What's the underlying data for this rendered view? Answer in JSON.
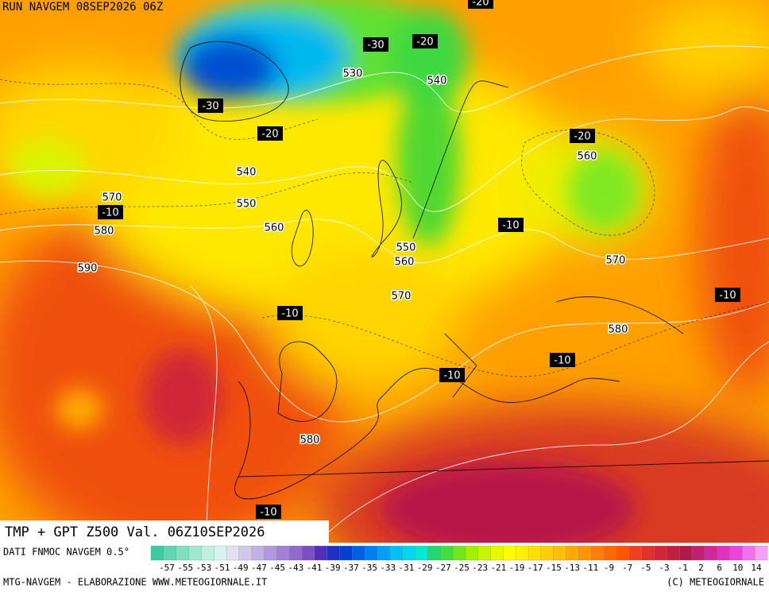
{
  "header": {
    "run": "RUN NAVGEM 08SEP2026 06Z"
  },
  "title": "TMP + GPT Z500 Val. 06Z10SEP2026",
  "map": {
    "temperature_labels": [
      "-20",
      "-30",
      "-20",
      "-30",
      "-20",
      "-10",
      "-20",
      "-10",
      "-10",
      "-10",
      "-10",
      "-10",
      "-10"
    ],
    "height_labels": [
      "530",
      "540",
      "540",
      "570",
      "550",
      "580",
      "560",
      "560",
      "590",
      "550",
      "560",
      "570",
      "570",
      "580",
      "580"
    ]
  },
  "scale": {
    "source": "DATI FNMOC NAVGEM 0.5°",
    "labels": [
      "-57",
      "-55",
      "-53",
      "-51",
      "-49",
      "-47",
      "-45",
      "-43",
      "-41",
      "-39",
      "-37",
      "-35",
      "-33",
      "-31",
      "-29",
      "-27",
      "-25",
      "-23",
      "-21",
      "-19",
      "-17",
      "-15",
      "-13",
      "-11",
      "-9",
      "-7",
      "-5",
      "-3",
      "-1",
      "2",
      "6",
      "10",
      "14"
    ],
    "colors": [
      "#3fc9a0",
      "#5fd6b0",
      "#7fe0c0",
      "#9fe8d0",
      "#bff0e0",
      "#d8f2f0",
      "#e0e0f0",
      "#d0c8ec",
      "#c0b0e6",
      "#b098de",
      "#a080d6",
      "#9068ce",
      "#7a50c4",
      "#5030b8",
      "#2030c0",
      "#0040d0",
      "#0060e0",
      "#0080ee",
      "#00a0f6",
      "#00c0f8",
      "#00d8f0",
      "#00e8d8",
      "#20d870",
      "#40e040",
      "#70e820",
      "#a0f000",
      "#c8f400",
      "#e8f800",
      "#ffff00",
      "#fff000",
      "#ffe000",
      "#ffd000",
      "#ffbf00",
      "#ffaa00",
      "#ff9500",
      "#ff8000",
      "#ff6a00",
      "#ff5500",
      "#f04020",
      "#e03030",
      "#d02838",
      "#c02040",
      "#b01848",
      "#c02070",
      "#d02898",
      "#e030c0",
      "#f040e0",
      "#f070f0",
      "#f8a0f8"
    ]
  },
  "footer": {
    "left": "MTG-NAVGEM - ELABORAZIONE WWW.METEOGIORNALE.IT",
    "right": "(C) METEOGIORNALE"
  }
}
